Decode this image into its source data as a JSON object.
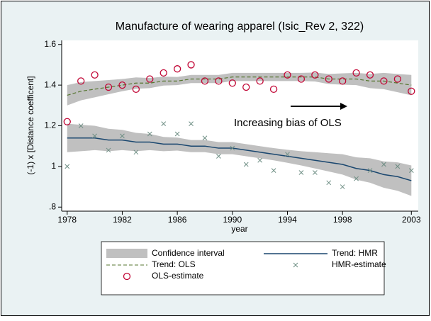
{
  "chart_data": {
    "type": "line",
    "title": "Manufacture of wearing apparel (Isic_Rev 2, 322)",
    "x_label": "year",
    "y_label": "(-1) x [Distance coefficent]",
    "annotation": "Increasing bias of OLS",
    "x": [
      1978,
      1979,
      1980,
      1981,
      1982,
      1983,
      1984,
      1985,
      1986,
      1987,
      1988,
      1989,
      1990,
      1991,
      1992,
      1993,
      1994,
      1995,
      1996,
      1997,
      1998,
      1999,
      2000,
      2001,
      2002,
      2003
    ],
    "xlim": [
      1977.6,
      2003.5
    ],
    "xticks": [
      1978,
      1982,
      1986,
      1990,
      1994,
      1998,
      2003
    ],
    "ylim": [
      0.78,
      1.62
    ],
    "yticks": [
      {
        "value": 0.8,
        "label": ".8"
      },
      1,
      1.2,
      1.4,
      1.6
    ],
    "grid": false,
    "legend": "bottom",
    "series": [
      {
        "name": "Confidence interval",
        "kind": "band",
        "color": "#c0c0c0",
        "bands": [
          {
            "lower": [
              1.07,
              1.075,
              1.08,
              1.075,
              1.08,
              1.075,
              1.08,
              1.075,
              1.078,
              1.07,
              1.07,
              1.06,
              1.06,
              1.05,
              1.04,
              1.03,
              1.018,
              1.005,
              0.99,
              0.975,
              0.96,
              0.935,
              0.92,
              0.895,
              0.88,
              0.855
            ],
            "upper": [
              1.21,
              1.205,
              1.2,
              1.185,
              1.18,
              1.165,
              1.16,
              1.145,
              1.142,
              1.13,
              1.13,
              1.12,
              1.12,
              1.11,
              1.1,
              1.09,
              1.082,
              1.075,
              1.07,
              1.065,
              1.06,
              1.045,
              1.04,
              1.025,
              1.02,
              1.005
            ]
          },
          {
            "lower": [
              1.3,
              1.325,
              1.34,
              1.355,
              1.37,
              1.382,
              1.385,
              1.398,
              1.4,
              1.41,
              1.41,
              1.41,
              1.42,
              1.42,
              1.42,
              1.42,
              1.42,
              1.42,
              1.418,
              1.405,
              1.402,
              1.4,
              1.385,
              1.38,
              1.365,
              1.35
            ],
            "upper": [
              1.4,
              1.415,
              1.42,
              1.425,
              1.43,
              1.438,
              1.435,
              1.442,
              1.44,
              1.45,
              1.45,
              1.45,
              1.46,
              1.46,
              1.46,
              1.46,
              1.46,
              1.46,
              1.462,
              1.455,
              1.458,
              1.46,
              1.455,
              1.46,
              1.455,
              1.45
            ]
          }
        ]
      },
      {
        "name": "Trend: HMR",
        "kind": "line",
        "color": "#1a476f",
        "values": [
          1.14,
          1.14,
          1.14,
          1.13,
          1.13,
          1.12,
          1.12,
          1.11,
          1.11,
          1.1,
          1.1,
          1.09,
          1.09,
          1.08,
          1.07,
          1.06,
          1.05,
          1.04,
          1.03,
          1.02,
          1.01,
          0.99,
          0.98,
          0.96,
          0.95,
          0.93
        ]
      },
      {
        "name": "Trend: OLS",
        "kind": "dashed",
        "color": "#55752f",
        "values": [
          1.35,
          1.37,
          1.38,
          1.39,
          1.4,
          1.41,
          1.41,
          1.42,
          1.42,
          1.43,
          1.43,
          1.43,
          1.44,
          1.44,
          1.44,
          1.44,
          1.44,
          1.44,
          1.44,
          1.43,
          1.43,
          1.43,
          1.42,
          1.42,
          1.41,
          1.4
        ]
      },
      {
        "name": "HMR-estimate",
        "kind": "cross",
        "color": "#6e8e84",
        "values": [
          1.0,
          1.2,
          1.15,
          1.08,
          1.15,
          1.07,
          1.16,
          1.21,
          1.16,
          1.21,
          1.14,
          1.05,
          1.09,
          1.01,
          1.03,
          0.98,
          1.06,
          0.97,
          0.97,
          0.92,
          0.9,
          0.94,
          0.98,
          1.01,
          1.0,
          0.98
        ]
      },
      {
        "name": "OLS-estimate",
        "kind": "circle",
        "color": "#c10534",
        "values": [
          1.22,
          1.42,
          1.45,
          1.39,
          1.4,
          1.38,
          1.43,
          1.46,
          1.48,
          1.5,
          1.42,
          1.42,
          1.41,
          1.39,
          1.42,
          1.38,
          1.45,
          1.43,
          1.45,
          1.43,
          1.42,
          1.46,
          1.45,
          1.42,
          1.43,
          1.37
        ]
      }
    ]
  }
}
